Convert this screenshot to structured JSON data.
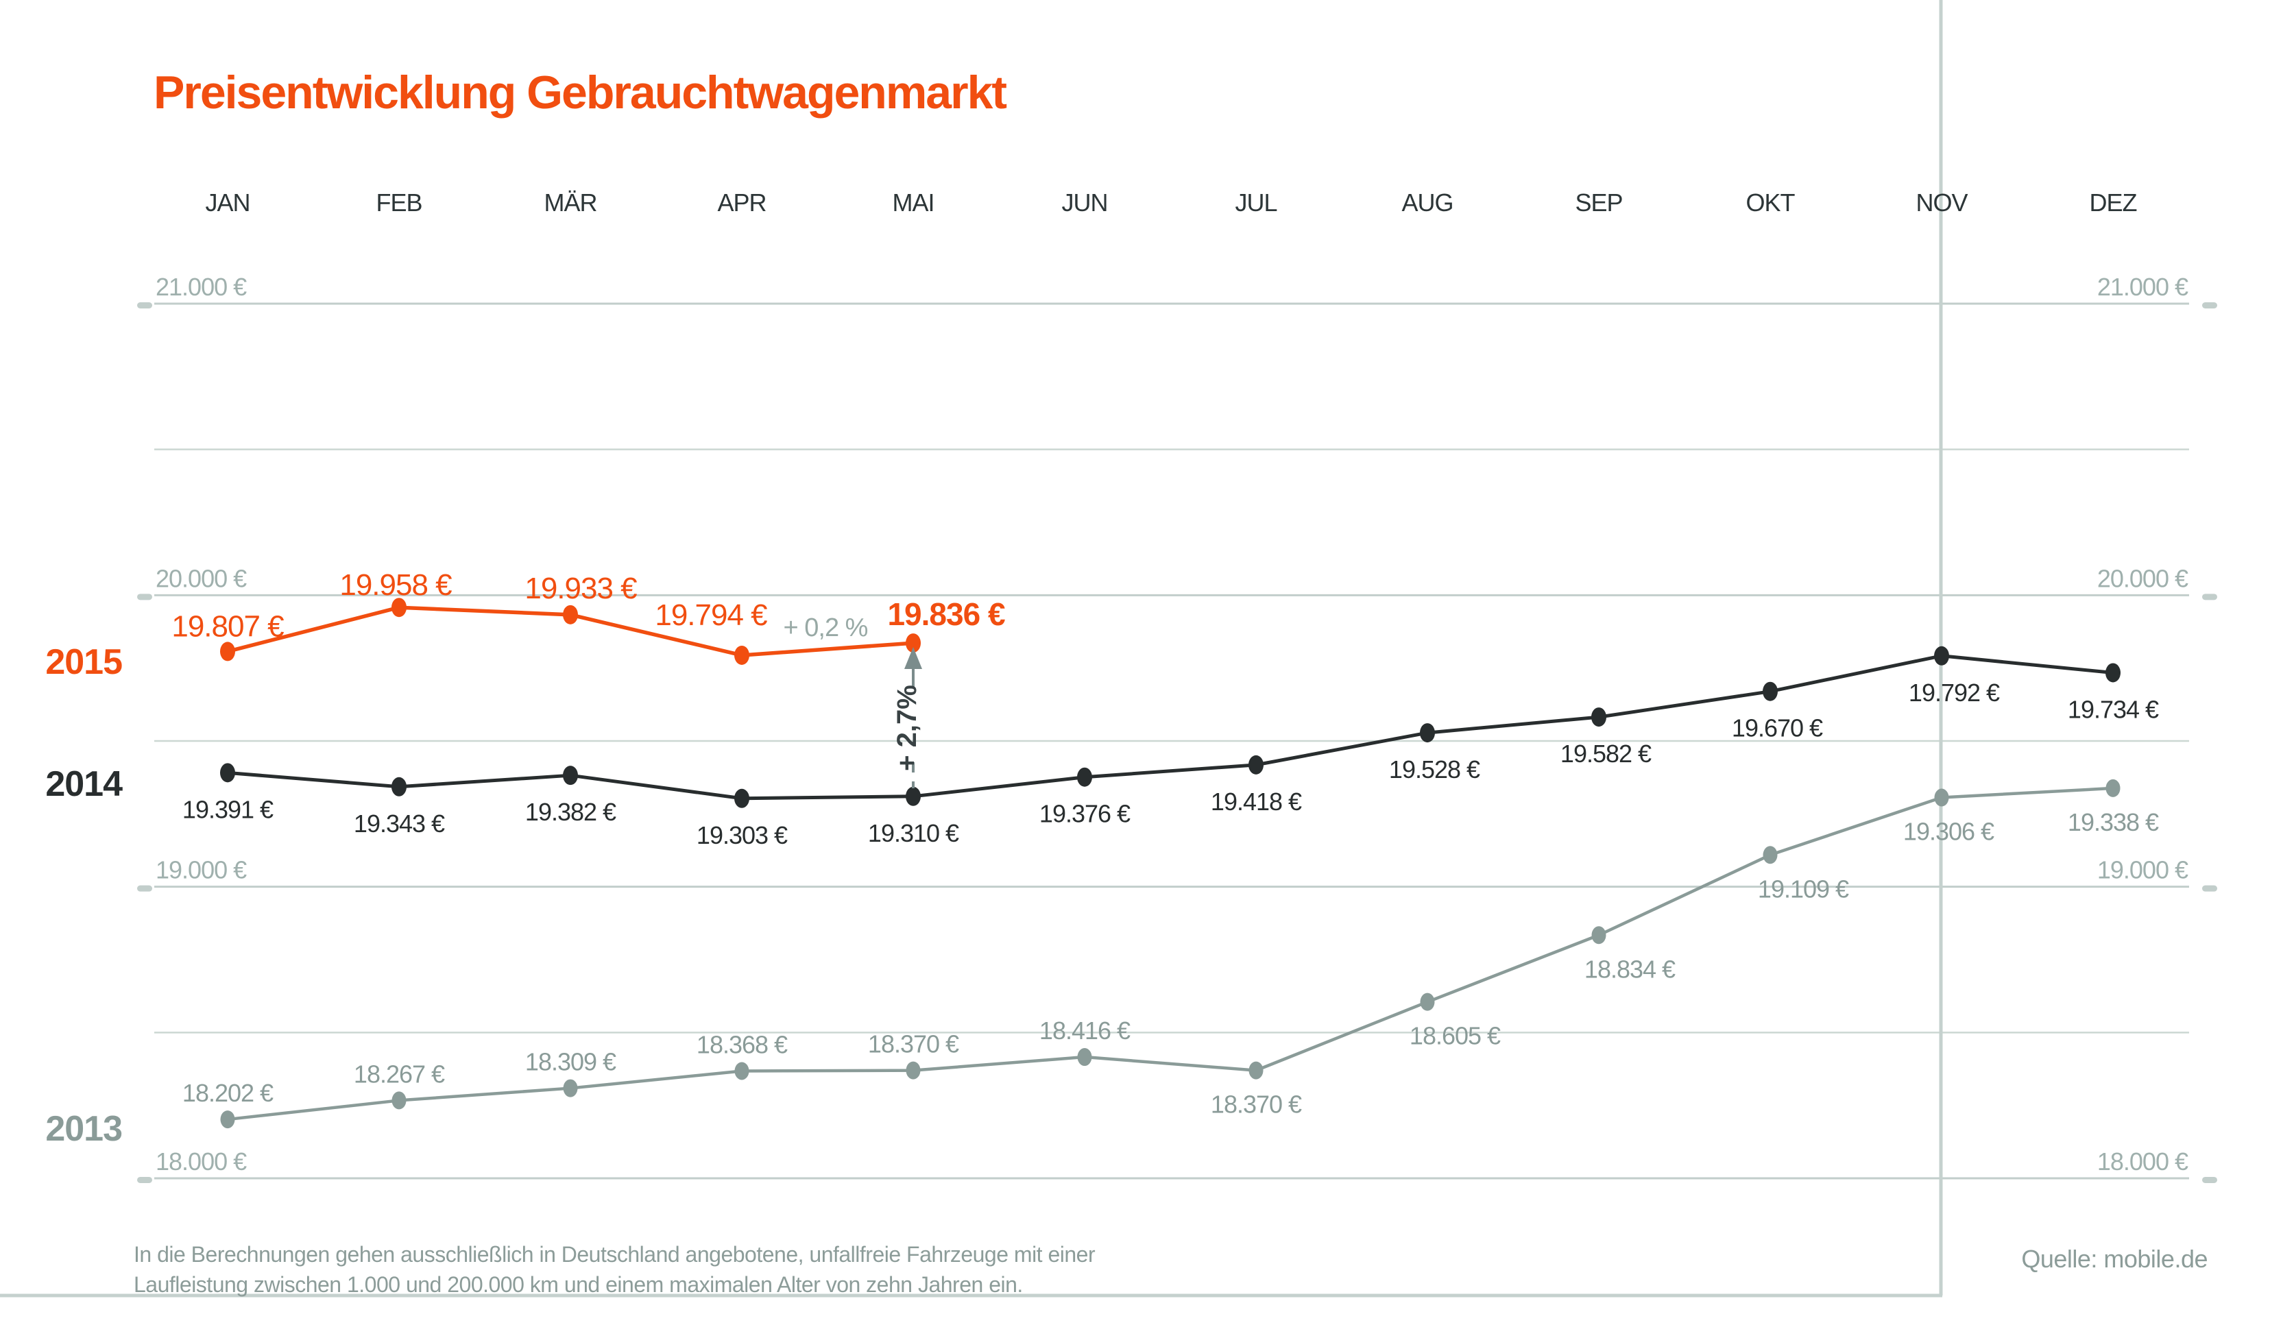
{
  "title": "Preisentwicklung Gebrauchtwagenmarkt",
  "source": "Quelle: mobile.de",
  "footnote": {
    "line1": "In die Berechnungen gehen ausschließlich in Deutschland angebotene, unfallfreie Fahrzeuge mit einer",
    "line2": "Laufleistung zwischen 1.000 und 200.000 km und einem maximalen Alter von zehn Jahren ein."
  },
  "colors": {
    "accent_orange": "#f14e10",
    "series_2014_dark": "#282d2e",
    "series_2013_gray": "#8a9b98",
    "gridline": "#ccd7d3",
    "gridline_major": "#c2cecb",
    "axis_label": "#9fb0ad",
    "frame_rule": "#c5d1ce",
    "month_label": "#2c3537",
    "footnote_text": "#8c9c99",
    "annotation_gray": "#98a9a5",
    "annotation_dark": "#394244",
    "arrow": "#7b8c8c"
  },
  "chart_data": {
    "type": "line",
    "unit": "€",
    "title": "Preisentwicklung Gebrauchtwagenmarkt",
    "categories": [
      "JAN",
      "FEB",
      "MÄR",
      "APR",
      "MAI",
      "JUN",
      "JUL",
      "AUG",
      "SEP",
      "OKT",
      "NOV",
      "DEZ"
    ],
    "series": [
      {
        "name": "2013",
        "color": "#8a9b98",
        "values": [
          18202,
          18267,
          18309,
          18368,
          18370,
          18416,
          18370,
          18605,
          18834,
          19109,
          19306,
          19338
        ]
      },
      {
        "name": "2014",
        "color": "#282d2e",
        "values": [
          19391,
          19343,
          19382,
          19303,
          19310,
          19376,
          19418,
          19528,
          19582,
          19670,
          19792,
          19734
        ]
      },
      {
        "name": "2015",
        "color": "#f14e10",
        "values": [
          19807,
          19958,
          19933,
          19794,
          19836,
          null,
          null,
          null,
          null,
          null,
          null,
          null
        ]
      }
    ],
    "ylim": [
      18000,
      21000
    ],
    "grid_step": 500,
    "axis_label_step": 1000,
    "grid": true,
    "y_axis_labels": [
      "21.000 €",
      "20.000 €",
      "19.000 €",
      "18.000 €"
    ],
    "legend_position": "year-labels-left-of-lines",
    "annotations": [
      {
        "id": "mom-change-2015",
        "text": "+ 0,2 %"
      },
      {
        "id": "yoy-change-mai",
        "text": "+ 2,7%"
      }
    ]
  }
}
